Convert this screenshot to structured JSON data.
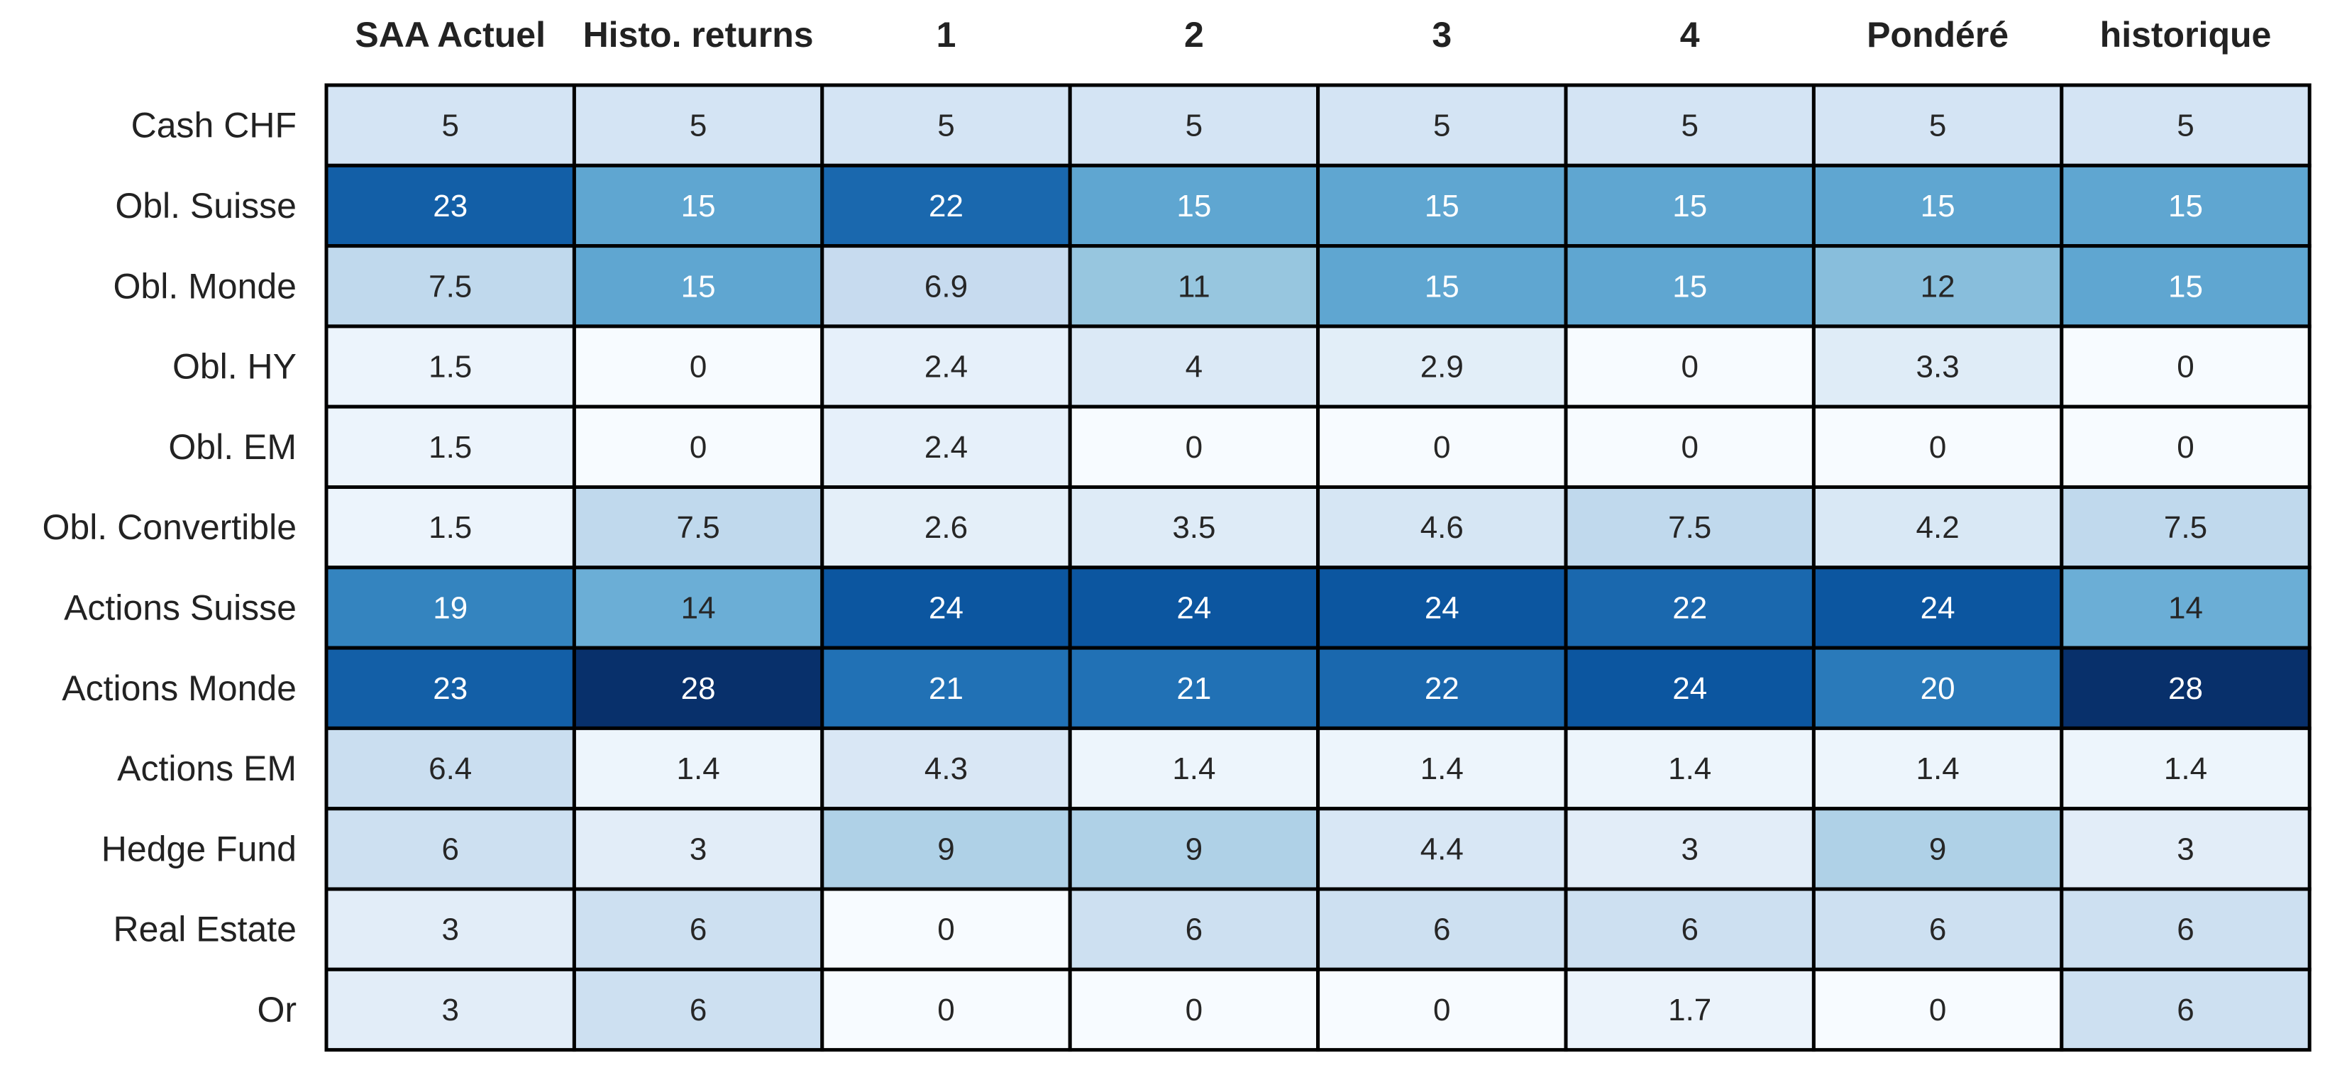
{
  "chart_data": {
    "type": "heatmap",
    "columns": [
      "SAA Actuel",
      "Histo. returns",
      "1",
      "2",
      "3",
      "4",
      "Pondéré",
      "historique"
    ],
    "rows": [
      "Cash CHF",
      "Obl. Suisse",
      "Obl. Monde",
      "Obl. HY",
      "Obl. EM",
      "Obl. Convertible",
      "Actions Suisse",
      "Actions Monde",
      "Actions EM",
      "Hedge Fund",
      "Real Estate",
      "Or"
    ],
    "values": [
      [
        5,
        5,
        5,
        5,
        5,
        5,
        5,
        5
      ],
      [
        23,
        15,
        22,
        15,
        15,
        15,
        15,
        15
      ],
      [
        7.5,
        15,
        6.9,
        11,
        15,
        15,
        12,
        15
      ],
      [
        1.5,
        0,
        2.4,
        4,
        2.9,
        0,
        3.3,
        0
      ],
      [
        1.5,
        0,
        2.4,
        0,
        0,
        0,
        0,
        0
      ],
      [
        1.5,
        7.5,
        2.6,
        3.5,
        4.6,
        7.5,
        4.2,
        7.5
      ],
      [
        19,
        14,
        24,
        24,
        24,
        22,
        24,
        14
      ],
      [
        23,
        28,
        21,
        21,
        22,
        24,
        20,
        28
      ],
      [
        6.4,
        1.4,
        4.3,
        1.4,
        1.4,
        1.4,
        1.4,
        1.4
      ],
      [
        6,
        3,
        9,
        9,
        4.4,
        3,
        9,
        3
      ],
      [
        3,
        6,
        0,
        6,
        6,
        6,
        6,
        6
      ],
      [
        3,
        6,
        0,
        0,
        0,
        1.7,
        0,
        6
      ]
    ],
    "colormap": "Blues",
    "color_range": [
      0,
      28
    ],
    "annotated": true,
    "colorbar": false,
    "x_axis_position": "top",
    "cell_border_color": "#000000"
  }
}
